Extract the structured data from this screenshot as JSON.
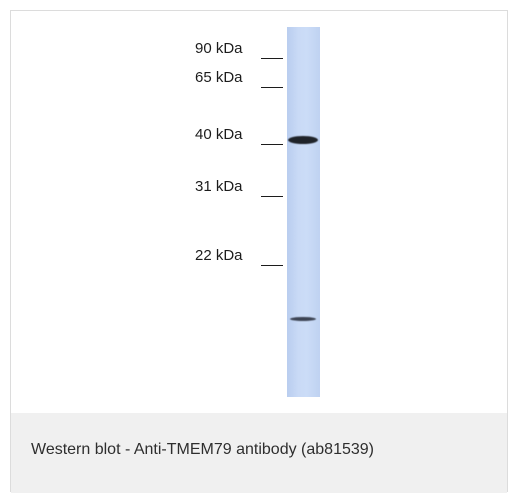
{
  "blot": {
    "markers": [
      {
        "label": "90 kDa"
      },
      {
        "label": "65 kDa"
      },
      {
        "label": "40 kDa"
      },
      {
        "label": "31 kDa"
      },
      {
        "label": "22 kDa"
      }
    ],
    "lane_color": "#c7d9f5",
    "band_color": "#1f2329"
  },
  "caption": {
    "text": "Western blot - Anti-TMEM79 antibody (ab81539)"
  }
}
